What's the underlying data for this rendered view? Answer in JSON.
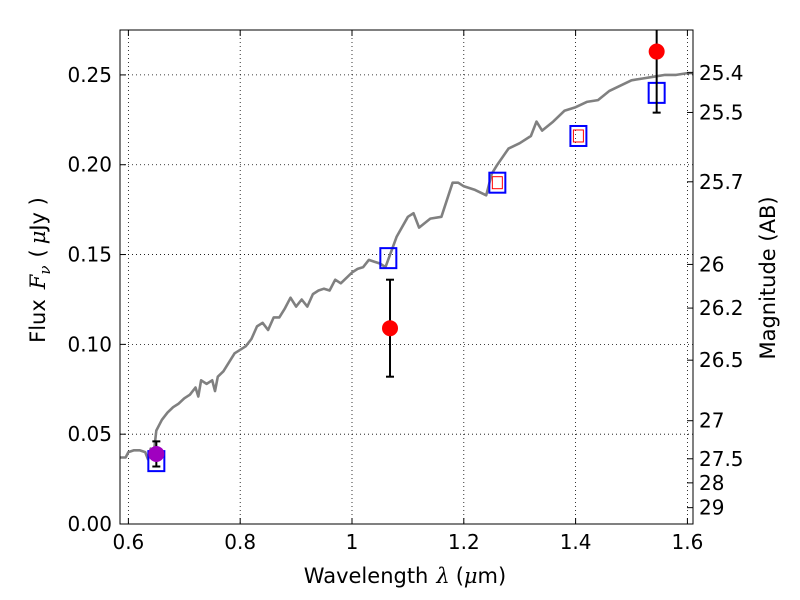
{
  "chart_data": {
    "type": "scatter",
    "xlabel_parts": [
      "Wavelength",
      "λ",
      "(",
      "μ",
      "m)"
    ],
    "ylabel_parts": [
      "Flux",
      "F",
      "ν",
      "(",
      "μ",
      "Jy )"
    ],
    "y2label": "Magnitude (AB)",
    "xlim": [
      0.585,
      1.61
    ],
    "ylim": [
      0.0,
      0.275
    ],
    "grid": true,
    "x_ticks": [
      0.6,
      0.8,
      1.0,
      1.2,
      1.4,
      1.6
    ],
    "x_tick_labels": [
      "0.6",
      "0.8",
      "1",
      "1.2",
      "1.4",
      "1.6"
    ],
    "y_ticks": [
      0.0,
      0.05,
      0.1,
      0.15,
      0.2,
      0.25
    ],
    "y_tick_labels": [
      "0.00",
      "0.05",
      "0.10",
      "0.15",
      "0.20",
      "0.25"
    ],
    "y2_ticks": [
      {
        "flux": 0.2512,
        "label": "25.4"
      },
      {
        "flux": 0.2291,
        "label": "25.5"
      },
      {
        "flux": 0.1905,
        "label": "25.7"
      },
      {
        "flux": 0.1445,
        "label": "26"
      },
      {
        "flux": 0.1202,
        "label": "26.2"
      },
      {
        "flux": 0.0912,
        "label": "26.5"
      },
      {
        "flux": 0.0575,
        "label": "27"
      },
      {
        "flux": 0.0363,
        "label": "27.5"
      },
      {
        "flux": 0.0229,
        "label": "28"
      },
      {
        "flux": 0.0091,
        "label": "29"
      }
    ],
    "series": [
      {
        "name": "model_sed",
        "kind": "line",
        "color": "#808080",
        "x": [
          0.585,
          0.595,
          0.6,
          0.61,
          0.62,
          0.63,
          0.635,
          0.64,
          0.645,
          0.65,
          0.655,
          0.66,
          0.67,
          0.68,
          0.69,
          0.7,
          0.71,
          0.72,
          0.725,
          0.73,
          0.74,
          0.75,
          0.755,
          0.76,
          0.77,
          0.78,
          0.79,
          0.8,
          0.81,
          0.82,
          0.83,
          0.84,
          0.85,
          0.86,
          0.87,
          0.88,
          0.89,
          0.9,
          0.91,
          0.92,
          0.93,
          0.94,
          0.95,
          0.96,
          0.97,
          0.98,
          0.99,
          1.0,
          1.01,
          1.02,
          1.03,
          1.04,
          1.05,
          1.06,
          1.08,
          1.1,
          1.11,
          1.12,
          1.14,
          1.16,
          1.18,
          1.19,
          1.2,
          1.22,
          1.24,
          1.25,
          1.26,
          1.28,
          1.3,
          1.32,
          1.33,
          1.34,
          1.36,
          1.38,
          1.4,
          1.42,
          1.44,
          1.46,
          1.48,
          1.5,
          1.52,
          1.54,
          1.56,
          1.58,
          1.6,
          1.61
        ],
        "y": [
          0.037,
          0.037,
          0.04,
          0.041,
          0.041,
          0.04,
          0.036,
          0.042,
          0.038,
          0.052,
          0.055,
          0.058,
          0.062,
          0.065,
          0.067,
          0.07,
          0.072,
          0.076,
          0.071,
          0.08,
          0.078,
          0.08,
          0.074,
          0.082,
          0.085,
          0.09,
          0.095,
          0.097,
          0.099,
          0.103,
          0.11,
          0.112,
          0.108,
          0.115,
          0.115,
          0.12,
          0.126,
          0.121,
          0.125,
          0.121,
          0.128,
          0.13,
          0.131,
          0.13,
          0.136,
          0.134,
          0.137,
          0.14,
          0.142,
          0.143,
          0.147,
          0.146,
          0.145,
          0.143,
          0.16,
          0.171,
          0.173,
          0.165,
          0.17,
          0.171,
          0.19,
          0.19,
          0.188,
          0.186,
          0.183,
          0.195,
          0.2,
          0.209,
          0.212,
          0.216,
          0.224,
          0.219,
          0.224,
          0.23,
          0.232,
          0.235,
          0.236,
          0.241,
          0.244,
          0.247,
          0.248,
          0.249,
          0.25,
          0.25,
          0.251,
          0.251
        ]
      },
      {
        "name": "model_photometry",
        "kind": "open_square",
        "color": "#0000ff",
        "x": [
          0.65,
          1.065,
          1.26,
          1.405,
          1.545
        ],
        "y": [
          0.035,
          0.148,
          0.19,
          0.216,
          0.24
        ]
      },
      {
        "name": "observed_flux",
        "kind": "filled_circle",
        "color": "#ff0000",
        "x": [
          1.068,
          1.545
        ],
        "y": [
          0.109,
          0.263
        ],
        "err": [
          0.027,
          0.034
        ]
      },
      {
        "name": "observed_flux_blue",
        "kind": "filled_circle",
        "color": "#a000c0",
        "x": [
          0.65
        ],
        "y": [
          0.039
        ],
        "err": [
          0.007
        ]
      }
    ],
    "extra_markers": [
      {
        "kind": "open_square_small",
        "color": "#ff0000",
        "x": 1.26,
        "y": 0.19
      },
      {
        "kind": "open_square_small",
        "color": "#ff0000",
        "x": 1.405,
        "y": 0.216
      }
    ]
  }
}
